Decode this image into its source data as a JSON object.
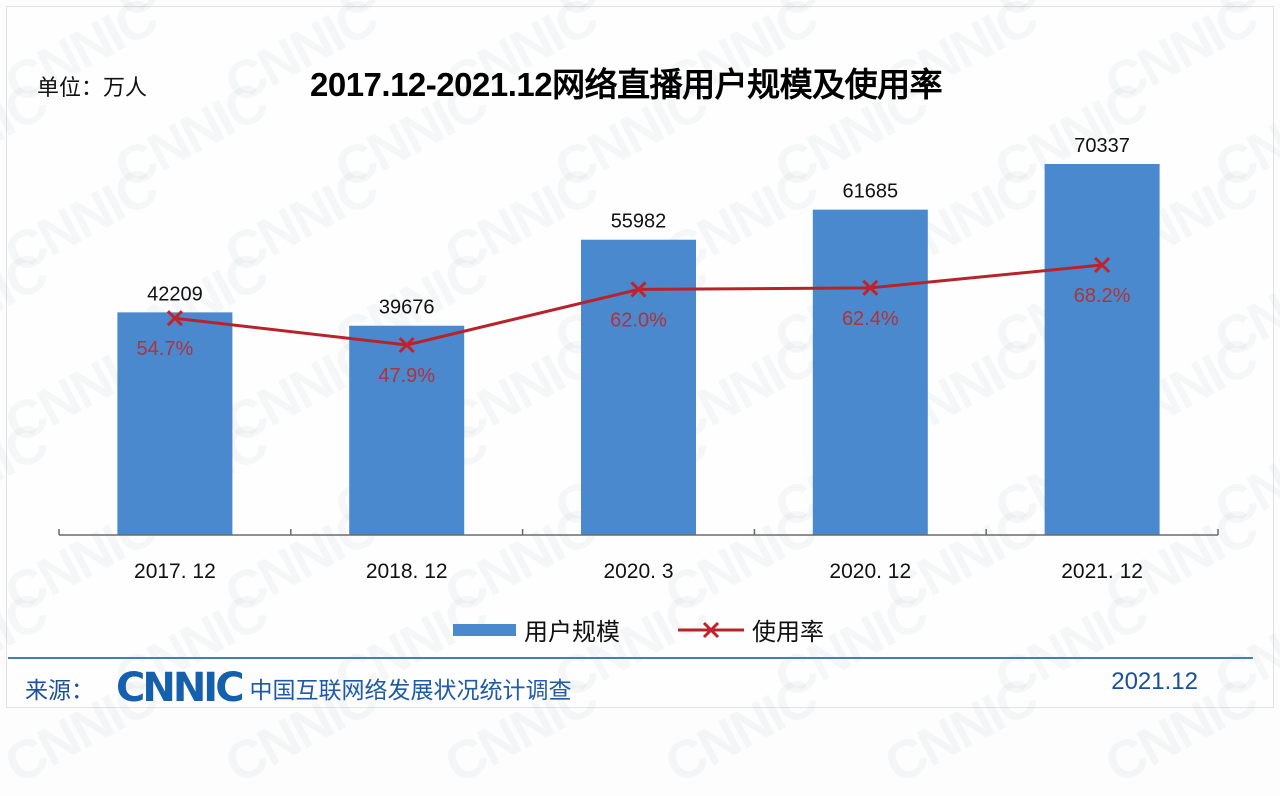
{
  "header": {
    "unit": "单位：万人",
    "title": "2017.12-2021.12网络直播用户规模及使用率"
  },
  "colors": {
    "bar": "#4a89cd",
    "line": "#b8232b",
    "pct_label": "#b1323a",
    "footer_accent": "#1a4f9a",
    "footer_rule": "#3f7fbf"
  },
  "legend": {
    "bar_label": "用户规模",
    "line_label": "使用率"
  },
  "footer": {
    "source_label": "来源：",
    "logo_text": "CNNIC",
    "org_name": "中国互联网络发展状况统计调查",
    "date": "2021.12"
  },
  "watermark": "CNNIC",
  "chart_data": {
    "type": "bar",
    "title": "2017.12-2021.12网络直播用户规模及使用率",
    "xlabel": "",
    "ylabel": "单位：万人",
    "categories": [
      "2017. 12",
      "2018. 12",
      "2020. 3",
      "2020. 12",
      "2021. 12"
    ],
    "series": [
      {
        "name": "用户规模",
        "type": "bar",
        "values": [
          42209,
          39676,
          55982,
          61685,
          70337
        ],
        "labels": [
          "42209",
          "39676",
          "55982",
          "61685",
          "70337"
        ]
      },
      {
        "name": "使用率",
        "type": "line",
        "marker": "x",
        "values": [
          54.7,
          47.9,
          62.0,
          62.4,
          68.2
        ],
        "labels": [
          "54.7%",
          "47.9%",
          "62.0%",
          "62.4%",
          "68.2%"
        ]
      }
    ],
    "grid": false,
    "legend_position": "bottom"
  }
}
